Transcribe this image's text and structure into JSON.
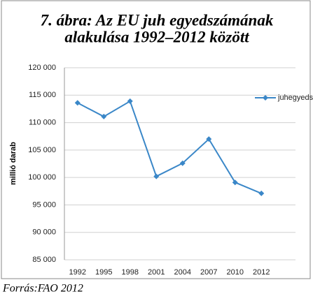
{
  "chart_data": {
    "type": "line",
    "title": [
      "7. ábra: Az EU juh egyedszámának",
      "alakulása 1992–2012 között"
    ],
    "y_label": "millió darab",
    "source": "Forrás:FAO 2012",
    "categories": [
      "1992",
      "1995",
      "1998",
      "2001",
      "2004",
      "2007",
      "2010",
      "2012"
    ],
    "series": [
      {
        "name": "juhegyedszám",
        "color": "#3a87c8",
        "values": [
          113600,
          111100,
          113900,
          100200,
          102600,
          107000,
          99100,
          97100
        ]
      }
    ],
    "ylim": [
      85000,
      120000
    ],
    "yticks": [
      {
        "value": 85000,
        "label": "85 000"
      },
      {
        "value": 90000,
        "label": "90 000"
      },
      {
        "value": 95000,
        "label": "95 000"
      },
      {
        "value": 100000,
        "label": "100 000"
      },
      {
        "value": 105000,
        "label": "105 000"
      },
      {
        "value": 110000,
        "label": "110 000"
      },
      {
        "value": 115000,
        "label": "115 000"
      },
      {
        "value": 120000,
        "label": "120 000"
      }
    ],
    "grid": true,
    "legend": "top-right"
  }
}
